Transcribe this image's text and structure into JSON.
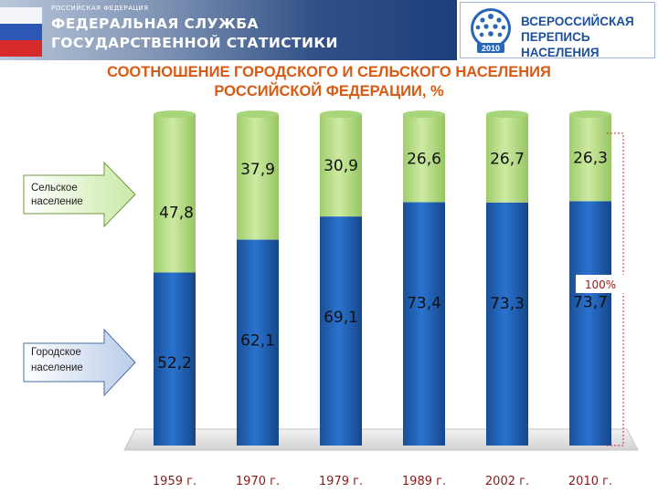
{
  "header": {
    "supra_title": "РОССИЙСКАЯ ФЕДЕРАЦИЯ",
    "agency_line1": "ФЕДЕРАЛЬНАЯ СЛУЖБА",
    "agency_line2": "ГОСУДАРСТВЕННОЙ СТАТИСТИКИ",
    "census_line1": "ВСЕРОССИЙСКАЯ",
    "census_line2": "ПЕРЕПИСЬ НАСЕЛЕНИЯ",
    "census_year": "2010"
  },
  "title_line1": "СООТНОШЕНИЕ ГОРОДСКОГО И СЕЛЬСКОГО НАСЕЛЕНИЯ",
  "title_line2": "РОССИЙСКОЙ ФЕДЕРАЦИИ, %",
  "chart_data": {
    "type": "bar",
    "stacked": true,
    "title": "СООТНОШЕНИЕ ГОРОДСКОГО И СЕЛЬСКОГО НАСЕЛЕНИЯ РОССИЙСКОЙ ФЕДЕРАЦИИ, %",
    "categories": [
      "1959 г.",
      "1970 г.",
      "1979 г.",
      "1989 г.",
      "2002 г.",
      "2010 г."
    ],
    "series": [
      {
        "name": "Городское население",
        "values": [
          52.2,
          62.1,
          69.1,
          73.4,
          73.3,
          73.7
        ],
        "labels": [
          "52,2",
          "62,1",
          "69,1",
          "73,4",
          "73,3",
          "73,7"
        ],
        "color": "#1d5fb3"
      },
      {
        "name": "Сельское население",
        "values": [
          47.8,
          37.9,
          30.9,
          26.6,
          26.7,
          26.3
        ],
        "labels": [
          "47,8",
          "37,9",
          "30,9",
          "26,6",
          "26,7",
          "26,3"
        ],
        "color": "#b5dd8a"
      }
    ],
    "ylim": [
      0,
      100
    ],
    "total_label": "100%",
    "grid": false,
    "legend": "left arrows"
  },
  "colors": {
    "accent_title": "#d85a14",
    "rural": "#b5dd8a",
    "urban": "#1d5fb3",
    "axis_label": "#8a1a1a"
  }
}
